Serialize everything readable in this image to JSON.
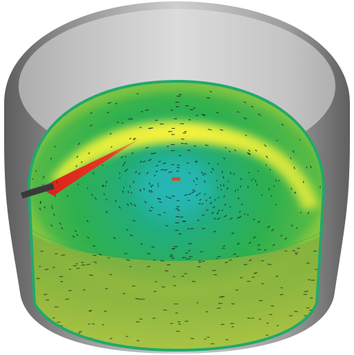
{
  "scene": {
    "subject": "cylindrical-vessel-flow-visualization",
    "colors": {
      "background": "#ffffff",
      "vessel_wall_light": "#e9e9e9",
      "vessel_wall_mid": "#a8a8a8",
      "vessel_wall_dark": "#6f6f6f",
      "fluid_center": "#2bb6b0",
      "fluid_green": "#2fb153",
      "fluid_light_green": "#a8cf3d",
      "fluid_yellow": "#eef03a",
      "fluid_red": "#e2261f",
      "fluid_rim": "#2aa869",
      "front_wall_tint": "#8fb23c",
      "vector_marks": "#1d2a1b",
      "probe": "#3a3a3a",
      "center_marker": "#e0442a"
    },
    "icons": [
      "stirring-nozzle",
      "center-marker",
      "velocity-vectors"
    ]
  }
}
